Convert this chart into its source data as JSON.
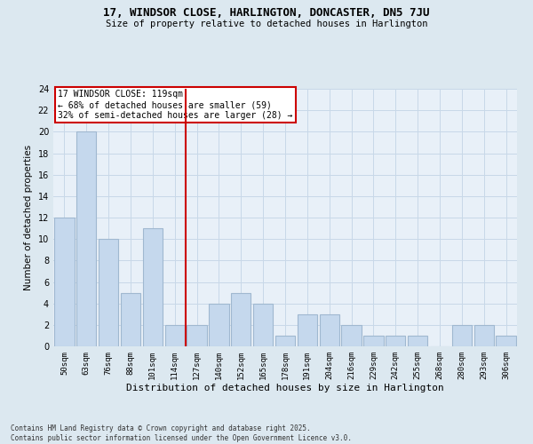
{
  "title1": "17, WINDSOR CLOSE, HARLINGTON, DONCASTER, DN5 7JU",
  "title2": "Size of property relative to detached houses in Harlington",
  "xlabel": "Distribution of detached houses by size in Harlington",
  "ylabel": "Number of detached properties",
  "categories": [
    "50sqm",
    "63sqm",
    "76sqm",
    "88sqm",
    "101sqm",
    "114sqm",
    "127sqm",
    "140sqm",
    "152sqm",
    "165sqm",
    "178sqm",
    "191sqm",
    "204sqm",
    "216sqm",
    "229sqm",
    "242sqm",
    "255sqm",
    "268sqm",
    "280sqm",
    "293sqm",
    "306sqm"
  ],
  "values": [
    12,
    20,
    10,
    5,
    11,
    2,
    2,
    4,
    5,
    4,
    1,
    3,
    3,
    2,
    1,
    1,
    1,
    0,
    2,
    2,
    1
  ],
  "bar_color": "#c5d8ed",
  "bar_edge_color": "#a0b8d0",
  "red_line_x": 5.5,
  "annotation_title": "17 WINDSOR CLOSE: 119sqm",
  "annotation_line1": "← 68% of detached houses are smaller (59)",
  "annotation_line2": "32% of semi-detached houses are larger (28) →",
  "annotation_box_color": "#ffffff",
  "annotation_border_color": "#cc0000",
  "red_line_color": "#cc0000",
  "grid_color": "#c8d8e8",
  "bg_color": "#dce8f0",
  "plot_bg_color": "#e8f0f8",
  "ylim": [
    0,
    24
  ],
  "yticks": [
    0,
    2,
    4,
    6,
    8,
    10,
    12,
    14,
    16,
    18,
    20,
    22,
    24
  ],
  "footer1": "Contains HM Land Registry data © Crown copyright and database right 2025.",
  "footer2": "Contains public sector information licensed under the Open Government Licence v3.0."
}
